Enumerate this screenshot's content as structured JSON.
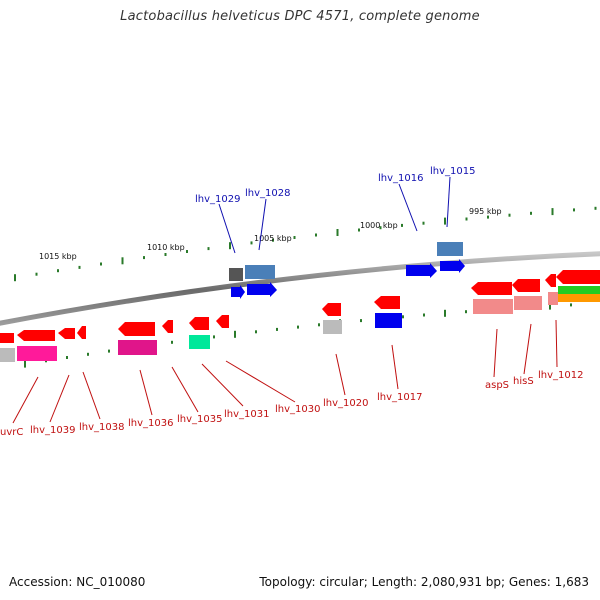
{
  "header": {
    "title": "Lactobacillus helveticus DPC 4571, complete genome"
  },
  "footer": {
    "accession": "Accession: NC_010080",
    "topology": "Topology: circular; Length: 2,080,931 bp; Genes: 1,683"
  },
  "scale": {
    "ticks": [
      {
        "label": "1015 kbp",
        "pos": 1015
      },
      {
        "label": "1010 kbp",
        "pos": 1010
      },
      {
        "label": "1005 kbp",
        "pos": 1005
      },
      {
        "label": "1000 kbp",
        "pos": 1000
      },
      {
        "label": "995 kbp",
        "pos": 995
      }
    ]
  },
  "genes_top": [
    {
      "label": "lhv_1029",
      "color": "#1010b0"
    },
    {
      "label": "lhv_1028",
      "color": "#1010b0"
    },
    {
      "label": "lhv_1016",
      "color": "#1010b0"
    },
    {
      "label": "lhv_1015",
      "color": "#1010b0"
    }
  ],
  "genes_bottom": [
    {
      "label": "uvrC",
      "color": "#c01010"
    },
    {
      "label": "lhv_1039",
      "color": "#c01010"
    },
    {
      "label": "lhv_1038",
      "color": "#c01010"
    },
    {
      "label": "lhv_1036",
      "color": "#c01010"
    },
    {
      "label": "lhv_1035",
      "color": "#c01010"
    },
    {
      "label": "lhv_1031",
      "color": "#c01010"
    },
    {
      "label": "lhv_1030",
      "color": "#c01010"
    },
    {
      "label": "lhv_1020",
      "color": "#c01010"
    },
    {
      "label": "lhv_1017",
      "color": "#c01010"
    },
    {
      "label": "aspS",
      "color": "#c01010"
    },
    {
      "label": "hisS",
      "color": "#c01010"
    },
    {
      "label": "lhv_1012",
      "color": "#c01010"
    }
  ],
  "colors": {
    "backbone": "#8a8a8a",
    "forward_gene": "#ff0000",
    "tick_mark": "#2a7a2a",
    "label_top": "#1010b0",
    "label_bottom": "#c01010"
  }
}
